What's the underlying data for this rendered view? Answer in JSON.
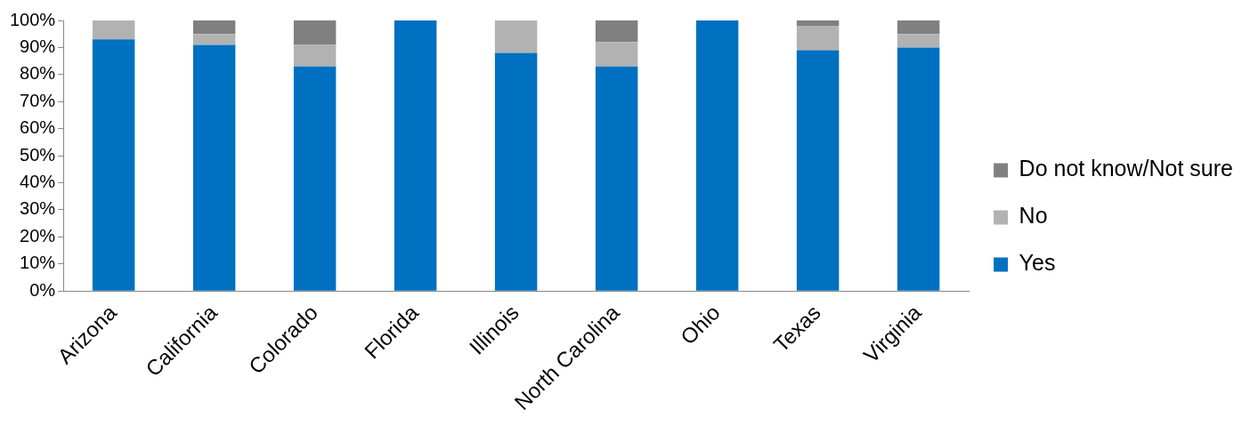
{
  "chart_data": {
    "type": "bar",
    "stacked": true,
    "categories": [
      "Arizona",
      "California",
      "Colorado",
      "Florida",
      "Illinois",
      "North Carolina",
      "Ohio",
      "Texas",
      "Virginia"
    ],
    "series": [
      {
        "name": "Yes",
        "color": "#0070c0",
        "values": [
          93,
          91,
          83,
          100,
          88,
          83,
          100,
          89,
          90
        ]
      },
      {
        "name": "No",
        "color": "#b2b2b2",
        "values": [
          7,
          4,
          8,
          0,
          12,
          9,
          0,
          9,
          5
        ]
      },
      {
        "name": "Do not know/Not sure",
        "color": "#808080",
        "values": [
          0,
          5,
          9,
          0,
          0,
          8,
          0,
          2,
          5
        ]
      }
    ],
    "ylim": [
      0,
      100
    ],
    "yticks": [
      {
        "value": 0,
        "label": "0%"
      },
      {
        "value": 10,
        "label": "10%"
      },
      {
        "value": 20,
        "label": "20%"
      },
      {
        "value": 30,
        "label": "30%"
      },
      {
        "value": 40,
        "label": "40%"
      },
      {
        "value": 50,
        "label": "50%"
      },
      {
        "value": 60,
        "label": "60%"
      },
      {
        "value": 70,
        "label": "70%"
      },
      {
        "value": 80,
        "label": "80%"
      },
      {
        "value": 90,
        "label": "90%"
      },
      {
        "value": 100,
        "label": "100%"
      }
    ],
    "grid": false,
    "legend": "right"
  }
}
